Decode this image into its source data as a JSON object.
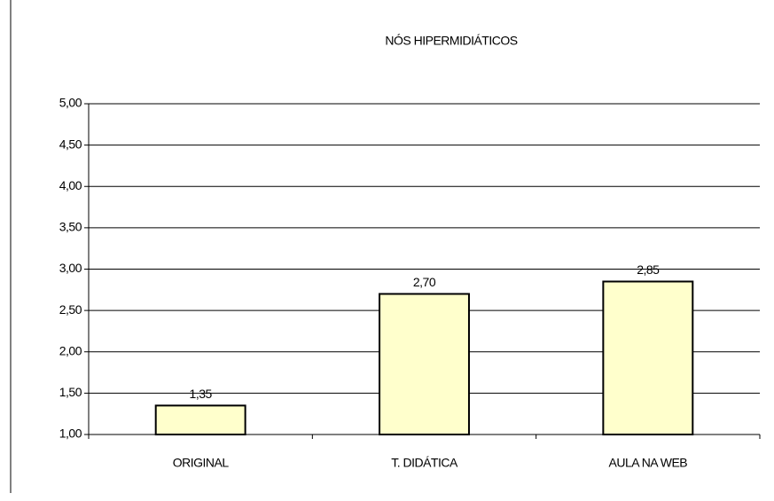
{
  "chart_data": {
    "type": "bar",
    "title": "NÓS HIPERMIDIÁTICOS",
    "categories": [
      "ORIGINAL",
      "T. DIDÁTICA",
      "AULA NA WEB"
    ],
    "values": [
      1.35,
      2.7,
      2.85
    ],
    "value_labels": [
      "1,35",
      "2,70",
      "2,85"
    ],
    "color": "#ffffcc",
    "ylim": [
      1,
      5
    ],
    "yticks": [
      {
        "value": 1,
        "label": "1,00"
      },
      {
        "value": 1.5,
        "label": "1,50"
      },
      {
        "value": 2,
        "label": "2,00"
      },
      {
        "value": 2.5,
        "label": "2,50"
      },
      {
        "value": 3,
        "label": "3,00"
      },
      {
        "value": 3.5,
        "label": "3,50"
      },
      {
        "value": 4,
        "label": "4,00"
      },
      {
        "value": 4.5,
        "label": "4,50"
      },
      {
        "value": 5,
        "label": "5,00"
      }
    ],
    "grid": true
  }
}
